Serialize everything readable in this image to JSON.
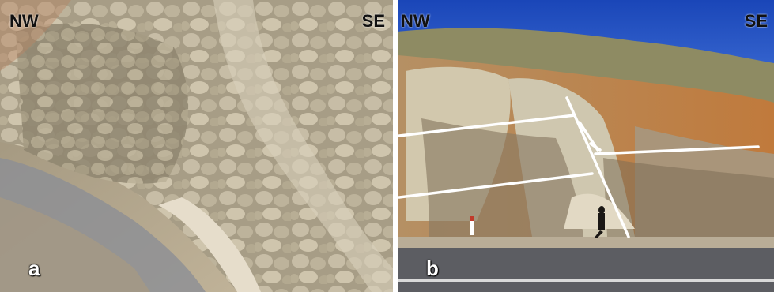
{
  "panel_a": {
    "left_direction": "NW",
    "right_direction": "SE",
    "panel_letter": "a"
  },
  "panel_b": {
    "left_direction": "NW",
    "right_direction": "SE",
    "panel_letter": "b"
  },
  "colors": {
    "sky": "#1f4fc0",
    "rock": "#b9ad92",
    "soil": "#c27a3f",
    "road": "#5c5d62",
    "fault_lines": "#ffffff"
  }
}
